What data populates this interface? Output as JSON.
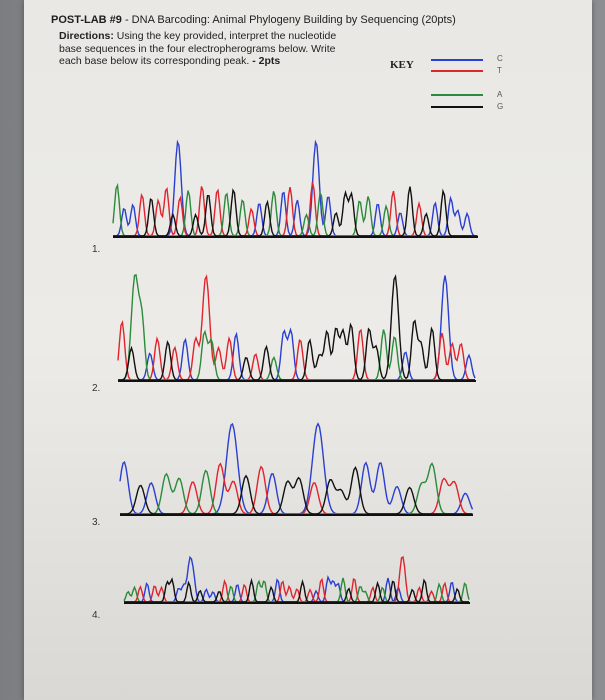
{
  "header": {
    "title_bold": "POST-LAB #9",
    "title_rest": " - DNA Barcoding: Animal Phylogeny Building by Sequencing (20pts)"
  },
  "directions": {
    "label": "Directions:",
    "text": " Using the key provided, interpret the nucleotide base sequences in the four electropherograms below. Write each base below its corresponding peak.",
    "points": " - 2pts"
  },
  "key": {
    "label": "KEY",
    "entries": [
      {
        "base": "C",
        "color": "#2a3fd1"
      },
      {
        "base": "T",
        "color": "#e0242e"
      },
      {
        "base": "A",
        "color": "#2c8a3c"
      },
      {
        "base": "G",
        "color": "#111111"
      }
    ]
  },
  "electropherograms": [
    {
      "number": "1."
    },
    {
      "number": "2."
    },
    {
      "number": "3."
    },
    {
      "number": "4."
    }
  ]
}
